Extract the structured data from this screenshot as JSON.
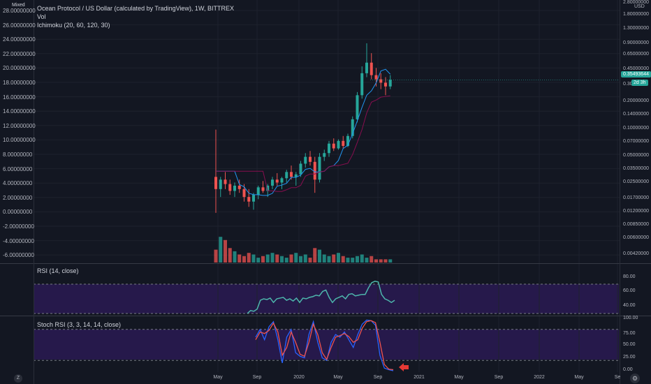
{
  "legend": {
    "title": "Ocean Protocol / US Dollar (calculated by TradingView), 1W, BITTREX",
    "vol": "Vol",
    "ichimoku": "Ichimoku (20, 60, 120, 30)",
    "mixed": "Mixed"
  },
  "left_axis": [
    "28.00000000",
    "26.00000000",
    "24.00000000",
    "22.00000000",
    "20.00000000",
    "18.00000000",
    "16.00000000",
    "14.00000000",
    "12.00000000",
    "10.00000000",
    "8.00000000",
    "6.00000000",
    "4.00000000",
    "2.00000000",
    "0.00000000",
    "-2.00000000",
    "-4.00000000",
    "-6.00000000"
  ],
  "right_axis": [
    "2.80000000",
    "1.80000000",
    "1.30000000",
    "0.90000000",
    "0.65000000",
    "0.45000000",
    "0.300",
    "0.20000000",
    "0.14000000",
    "0.10000000",
    "0.07000000",
    "0.05000000",
    "0.03500000",
    "0.02500000",
    "0.01700000",
    "0.01200000",
    "0.00850000",
    "0.00600000",
    "0.00420000"
  ],
  "currency_label": "USD",
  "price_badge": "0.35493644",
  "time_badge": "2d 3h",
  "rsi": {
    "label": "RSI (14, close)",
    "axis": [
      "80.00",
      "60.00",
      "40.00"
    ],
    "values": [
      40,
      44,
      43,
      46,
      58,
      60,
      59,
      61,
      55,
      60,
      61,
      62,
      58,
      60,
      57,
      61,
      55,
      61,
      60,
      62,
      63,
      65,
      64,
      70,
      72,
      62,
      55,
      60,
      62,
      64,
      60,
      66,
      67,
      64,
      65,
      66,
      66,
      75,
      82,
      84,
      83,
      66,
      60,
      58,
      55,
      58
    ]
  },
  "stoch": {
    "label": "Stoch RSI (3, 3, 14, 14, close)",
    "axis": [
      "100.00",
      "75.00",
      "50.00",
      "25.00",
      "0.00"
    ],
    "k": [
      65,
      80,
      60,
      85,
      95,
      60,
      15,
      65,
      80,
      35,
      28,
      25,
      70,
      95,
      55,
      25,
      20,
      55,
      70,
      65,
      75,
      60,
      45,
      70,
      90,
      98,
      97,
      88,
      30,
      5,
      2,
      0
    ],
    "d": [
      60,
      75,
      72,
      78,
      92,
      75,
      30,
      45,
      75,
      55,
      32,
      28,
      55,
      90,
      70,
      35,
      22,
      45,
      65,
      68,
      72,
      66,
      55,
      60,
      82,
      95,
      97,
      93,
      55,
      12,
      3,
      2
    ]
  },
  "time_axis": [
    "May",
    "Sep",
    "2020",
    "May",
    "Sep",
    "2021",
    "May",
    "Sep",
    "2022",
    "May",
    "Se"
  ],
  "colors": {
    "bg": "#131722",
    "up": "#26a69a",
    "down": "#ef5350",
    "rsi_fill": "#2a1a52",
    "stoch_k": "#2962ff",
    "stoch_d": "#ef5350",
    "rsi_line": "#4db6ac",
    "arrow": "#e53935"
  },
  "chart_data": {
    "type": "candlestick",
    "title": "Ocean Protocol / US Dollar (calculated by TradingView), 1W, BITTREX",
    "ohlc": [
      [
        0.03,
        0.1,
        0.012,
        0.022
      ],
      [
        0.022,
        0.03,
        0.018,
        0.028
      ],
      [
        0.028,
        0.034,
        0.022,
        0.025
      ],
      [
        0.025,
        0.028,
        0.019,
        0.021
      ],
      [
        0.021,
        0.026,
        0.018,
        0.024
      ],
      [
        0.024,
        0.028,
        0.02,
        0.022
      ],
      [
        0.022,
        0.025,
        0.016,
        0.018
      ],
      [
        0.018,
        0.022,
        0.014,
        0.016
      ],
      [
        0.016,
        0.02,
        0.013,
        0.019
      ],
      [
        0.019,
        0.024,
        0.017,
        0.023
      ],
      [
        0.023,
        0.027,
        0.02,
        0.021
      ],
      [
        0.021,
        0.025,
        0.018,
        0.024
      ],
      [
        0.024,
        0.03,
        0.022,
        0.028
      ],
      [
        0.028,
        0.033,
        0.024,
        0.026
      ],
      [
        0.026,
        0.03,
        0.022,
        0.029
      ],
      [
        0.029,
        0.036,
        0.026,
        0.034
      ],
      [
        0.034,
        0.04,
        0.028,
        0.03
      ],
      [
        0.03,
        0.034,
        0.024,
        0.032
      ],
      [
        0.032,
        0.045,
        0.03,
        0.042
      ],
      [
        0.042,
        0.055,
        0.038,
        0.05
      ],
      [
        0.05,
        0.058,
        0.04,
        0.044
      ],
      [
        0.044,
        0.05,
        0.02,
        0.028
      ],
      [
        0.028,
        0.055,
        0.026,
        0.05
      ],
      [
        0.05,
        0.06,
        0.045,
        0.055
      ],
      [
        0.055,
        0.075,
        0.05,
        0.07
      ],
      [
        0.07,
        0.08,
        0.058,
        0.062
      ],
      [
        0.062,
        0.078,
        0.06,
        0.075
      ],
      [
        0.075,
        0.085,
        0.062,
        0.066
      ],
      [
        0.066,
        0.09,
        0.064,
        0.085
      ],
      [
        0.085,
        0.14,
        0.08,
        0.13
      ],
      [
        0.13,
        0.26,
        0.12,
        0.24
      ],
      [
        0.24,
        0.5,
        0.22,
        0.42
      ],
      [
        0.42,
        0.9,
        0.38,
        0.55
      ],
      [
        0.55,
        0.7,
        0.36,
        0.4
      ],
      [
        0.4,
        0.48,
        0.3,
        0.36
      ],
      [
        0.36,
        0.42,
        0.28,
        0.33
      ],
      [
        0.33,
        0.38,
        0.24,
        0.3
      ],
      [
        0.3,
        0.4,
        0.28,
        0.355
      ]
    ],
    "volume": [
      8,
      16,
      14,
      9,
      7,
      5,
      4,
      6,
      5,
      3,
      4,
      5,
      6,
      5,
      4,
      3,
      5,
      6,
      4,
      5,
      3,
      9,
      8,
      5,
      4,
      5,
      6,
      4,
      3,
      3,
      4,
      5,
      3,
      4,
      2,
      2,
      2,
      2
    ],
    "y_scale": "log",
    "current_price": 0.35493644
  }
}
